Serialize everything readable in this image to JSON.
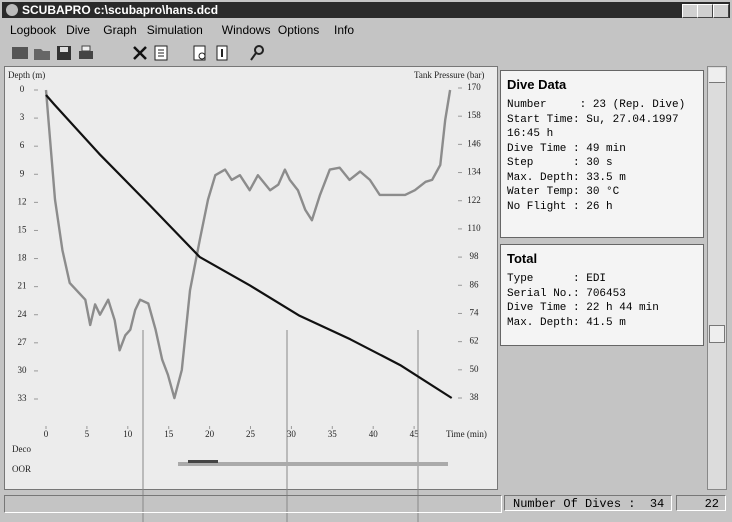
{
  "window": {
    "title": "SCUBAPRO c:\\scubapro\\hans.dcd"
  },
  "menu": [
    "Logbook",
    "Dive",
    "Graph",
    "Simulation",
    "Windows",
    "Options",
    "Info"
  ],
  "chart_data": {
    "type": "line",
    "x_label": "Time (min)",
    "y_label": "Depth (m)",
    "y2_label": "Tank Pressure (bar)",
    "xlim": [
      0,
      50
    ],
    "xticks": [
      0,
      5,
      10,
      15,
      20,
      25,
      30,
      35,
      40,
      45
    ],
    "ylim": [
      0,
      33
    ],
    "y_inverted": true,
    "yticks": [
      0,
      3,
      6,
      9,
      12,
      15,
      18,
      21,
      24,
      27,
      30,
      33
    ],
    "y2lim": [
      38,
      170
    ],
    "y2ticks": [
      170,
      158,
      146,
      134,
      122,
      110,
      98,
      86,
      74,
      62,
      50,
      38
    ],
    "series": [
      {
        "name": "Depth",
        "color": "#8c8c8c",
        "x": [
          0,
          1.1,
          2.0,
          2.9,
          4.8,
          5.4,
          6.0,
          6.6,
          7.6,
          8.4,
          9.0,
          9.7,
          10.3,
          10.9,
          11.5,
          12.5,
          13.4,
          14.2,
          14.9,
          15.7,
          16.6,
          17.6,
          18.8,
          19.8,
          20.7,
          21.9,
          22.7,
          23.7,
          24.9,
          25.9,
          27.4,
          28.4,
          29.2,
          29.8,
          30.8,
          31.7,
          32.5,
          33.5,
          34.7,
          35.9,
          37.1,
          38.4,
          39.6,
          40.8,
          42.6,
          43.9,
          45.1,
          46.4,
          47.2,
          48.2,
          48.8,
          49.4
        ],
        "values": [
          0,
          11.7,
          17.1,
          20.6,
          22.4,
          25.1,
          22.9,
          24.0,
          22.4,
          24.6,
          27.8,
          26.2,
          25.6,
          23.5,
          22.4,
          22.8,
          25.6,
          28.8,
          30.4,
          32.9,
          29.9,
          21.4,
          16.0,
          11.7,
          9.1,
          8.5,
          9.6,
          9.1,
          10.7,
          9.1,
          10.7,
          10.1,
          8.5,
          9.6,
          10.7,
          12.8,
          13.9,
          11.2,
          8.5,
          8.3,
          9.6,
          8.7,
          9.6,
          11.2,
          11.2,
          11.2,
          10.7,
          9.8,
          9.6,
          8.0,
          3.2,
          0
        ]
      },
      {
        "name": "Tank Pressure",
        "color": "#111111",
        "axis": "y2",
        "x": [
          0,
          1,
          6.5,
          12.7,
          18.8,
          24.9,
          31,
          37.2,
          43.3,
          49.6
        ],
        "values": [
          167,
          163,
          142,
          120,
          98,
          86,
          73,
          63,
          52,
          38
        ]
      }
    ],
    "bottom_labels": [
      "Deco",
      "OOR"
    ]
  },
  "dive_data": {
    "title": "Dive Data",
    "rows": [
      "Number     : 23 (Rep. Dive)",
      "Start Time: Su, 27.04.1997",
      "16:45 h",
      "Dive Time : 49 min",
      "Step      : 30 s",
      "Max. Depth: 33.5 m",
      "Water Temp: 30 °C",
      "No Flight : 26 h"
    ]
  },
  "total": {
    "title": "Total",
    "rows": [
      "Type      : EDI",
      "Serial No.: 706453",
      "Dive Time : 22 h 44 min",
      "Max. Depth: 41.5 m"
    ]
  },
  "status": {
    "dives": "Number Of Dives :  34",
    "right": "22"
  }
}
